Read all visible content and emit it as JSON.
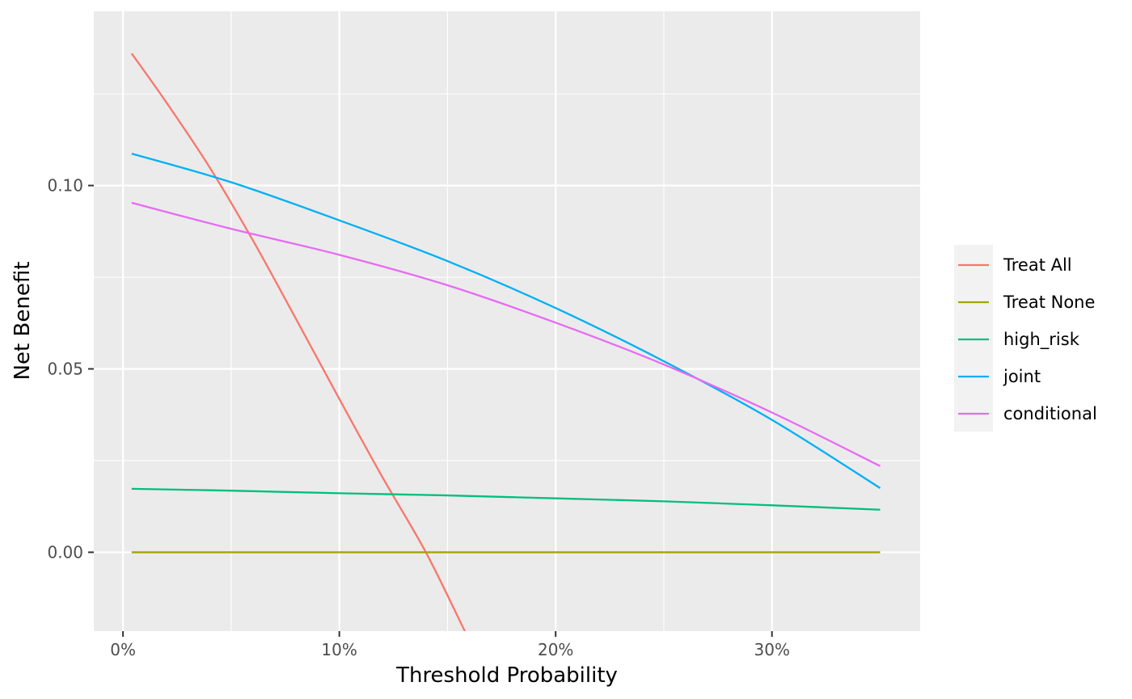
{
  "chart_data": {
    "type": "line",
    "title": "",
    "xlabel": "Threshold Probability",
    "ylabel": "Net Benefit",
    "xlim": [
      -0.0135,
      0.3685
    ],
    "ylim": [
      -0.0215,
      0.1475
    ],
    "x_ticks": [
      {
        "value": 0.0,
        "label": "0%"
      },
      {
        "value": 0.1,
        "label": "10%"
      },
      {
        "value": 0.2,
        "label": "20%"
      },
      {
        "value": 0.3,
        "label": "30%"
      }
    ],
    "y_ticks": [
      {
        "value": 0.0,
        "label": "0.00"
      },
      {
        "value": 0.05,
        "label": "0.05"
      },
      {
        "value": 0.1,
        "label": "0.10"
      }
    ],
    "grid": true,
    "legend_position": "right",
    "series": [
      {
        "name": "Treat All",
        "color": "#F8766D",
        "x": [
          0.004,
          0.02,
          0.04,
          0.06,
          0.08,
          0.1,
          0.12,
          0.14,
          0.158
        ],
        "y": [
          0.136,
          0.1227,
          0.105,
          0.0851,
          0.0636,
          0.0418,
          0.0204,
          0.0,
          -0.0215
        ]
      },
      {
        "name": "Treat None",
        "color": "#A3A500",
        "x": [
          0.004,
          0.35
        ],
        "y": [
          0.0,
          0.0
        ]
      },
      {
        "name": "high_risk",
        "color": "#00BF7D",
        "x": [
          0.004,
          0.05,
          0.1,
          0.15,
          0.2,
          0.25,
          0.3,
          0.35
        ],
        "y": [
          0.0173,
          0.0168,
          0.0161,
          0.0155,
          0.0147,
          0.0139,
          0.0128,
          0.0116
        ]
      },
      {
        "name": "joint",
        "color": "#00B0F6",
        "x": [
          0.004,
          0.05,
          0.1,
          0.15,
          0.2,
          0.25,
          0.3,
          0.35
        ],
        "y": [
          0.1087,
          0.1009,
          0.0905,
          0.0794,
          0.0666,
          0.0521,
          0.0361,
          0.0175
        ]
      },
      {
        "name": "conditional",
        "color": "#E76BF3",
        "x": [
          0.004,
          0.05,
          0.1,
          0.15,
          0.2,
          0.25,
          0.3,
          0.35
        ],
        "y": [
          0.0953,
          0.0882,
          0.0811,
          0.0728,
          0.0626,
          0.0512,
          0.0381,
          0.0235
        ]
      }
    ]
  }
}
